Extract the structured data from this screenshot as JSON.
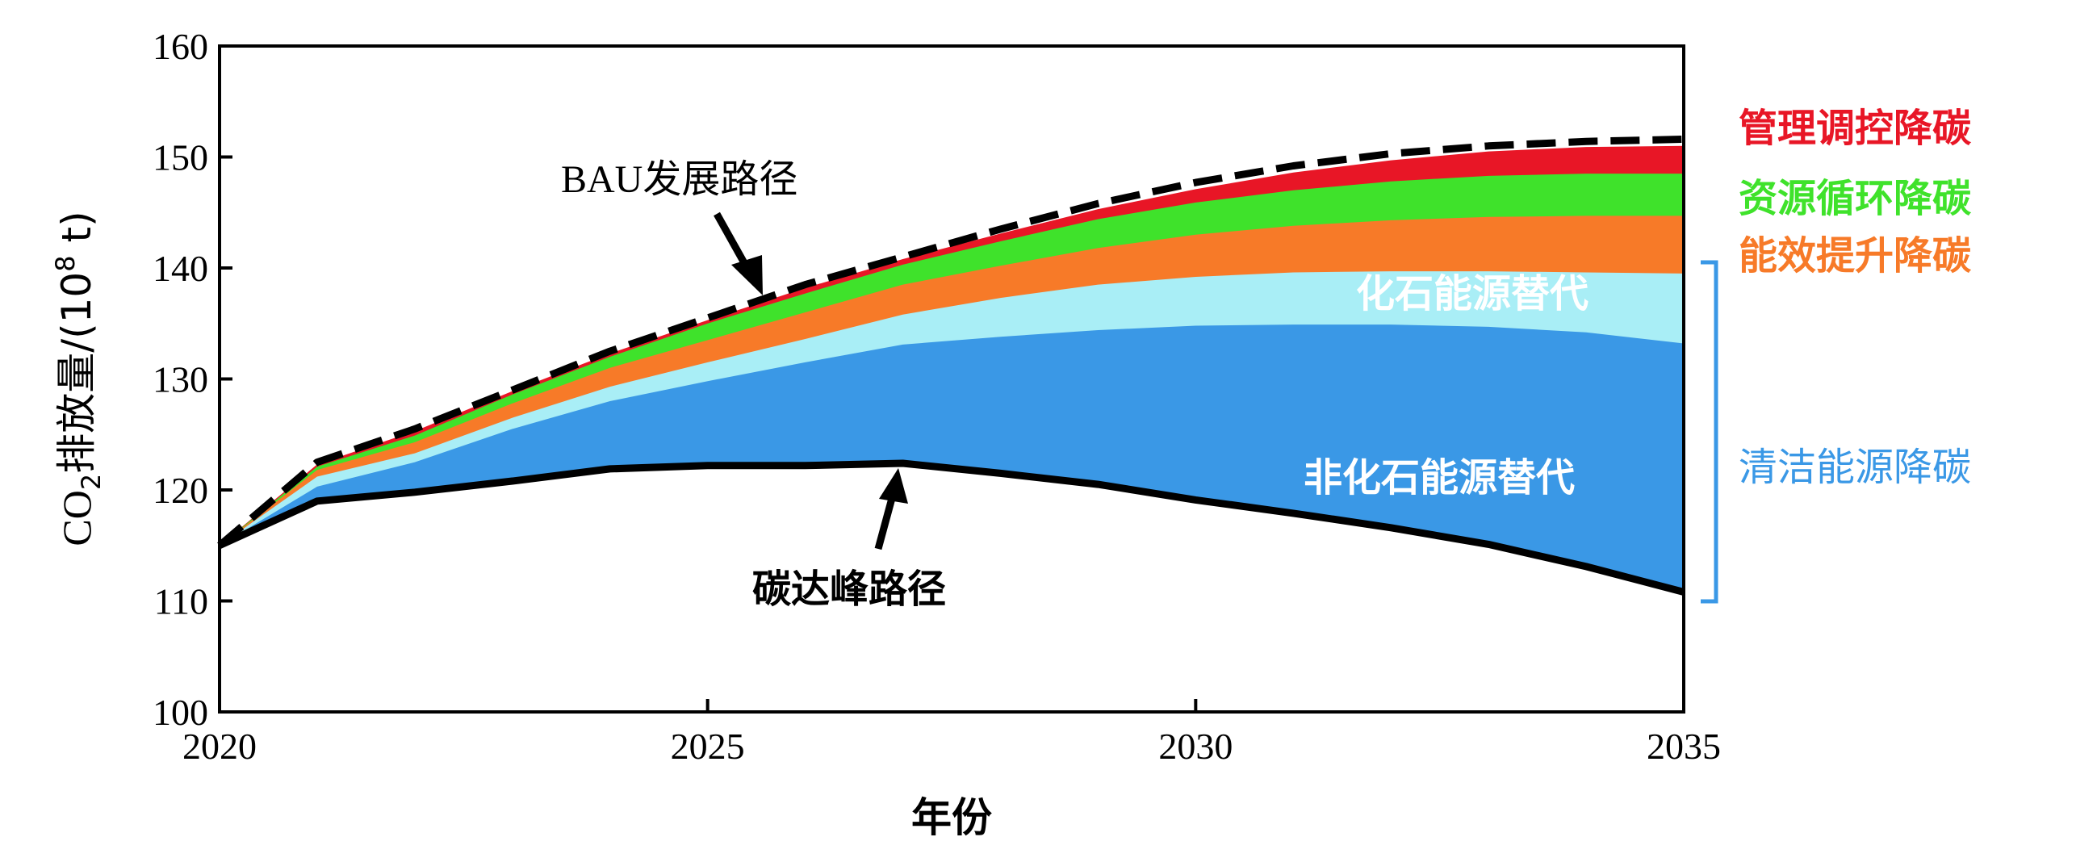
{
  "chart_data": {
    "type": "area",
    "xlabel": "年份",
    "ylabel_prefix": "CO",
    "ylabel_sub": "2",
    "ylabel_mid": "排放量/(10",
    "ylabel_sup": "8",
    "ylabel_suffix": " t)",
    "xlim": [
      2020,
      2035
    ],
    "ylim": [
      100,
      160
    ],
    "x_ticks": [
      2020,
      2025,
      2030,
      2035
    ],
    "y_ticks": [
      100,
      110,
      120,
      130,
      140,
      150,
      160
    ],
    "x": [
      2020,
      2021,
      2022,
      2023,
      2024,
      2025,
      2026,
      2027,
      2028,
      2029,
      2030,
      2031,
      2032,
      2033,
      2034,
      2035
    ],
    "lines": {
      "bau": [
        115,
        122.5,
        125.5,
        129,
        132.5,
        135.5,
        138.5,
        141,
        143.5,
        145.8,
        147.7,
        149.2,
        150.3,
        151,
        151.4,
        151.6
      ],
      "peak": [
        115,
        119,
        119.8,
        120.8,
        121.9,
        122.2,
        122.2,
        122.4,
        121.5,
        120.5,
        119.1,
        117.9,
        116.6,
        115.1,
        113.1,
        110.8
      ]
    },
    "bands": [
      {
        "name": "非化石能源替代",
        "color": "#3a98e6",
        "top": [
          115,
          120.3,
          122.5,
          125.5,
          128,
          129.8,
          131.5,
          133.1,
          133.8,
          134.4,
          134.8,
          134.9,
          134.9,
          134.7,
          134.2,
          133.2
        ]
      },
      {
        "name": "化石能源替代",
        "color": "#a9eef6",
        "top": [
          115,
          121.2,
          123.3,
          126.5,
          129.3,
          131.5,
          133.6,
          135.8,
          137.3,
          138.5,
          139.2,
          139.6,
          139.7,
          139.7,
          139.6,
          139.5
        ]
      },
      {
        "name": "能效提升降碳",
        "color": "#f77a28",
        "top": [
          115,
          121.8,
          124.3,
          127.8,
          131,
          133.5,
          136,
          138.5,
          140.2,
          141.8,
          143,
          143.8,
          144.3,
          144.6,
          144.7,
          144.7
        ]
      },
      {
        "name": "资源循环降碳",
        "color": "#3fe22b",
        "top": [
          115,
          122.1,
          124.9,
          128.6,
          132,
          135,
          137.7,
          140.3,
          142.4,
          144.4,
          145.9,
          147,
          147.8,
          148.3,
          148.5,
          148.5
        ]
      },
      {
        "name": "管理调控降碳",
        "color": "#e81626",
        "top": [
          115,
          122.3,
          125.3,
          128.9,
          132.3,
          135.3,
          138.2,
          140.8,
          143.1,
          145.3,
          147.1,
          148.6,
          149.7,
          150.5,
          150.9,
          151
        ]
      }
    ],
    "annotations": {
      "bau_label": "BAU发展路径",
      "peak_label": "碳达峰路径",
      "clean_label": "清洁能源降碳",
      "nonfossil_label": "非化石能源替代",
      "fossil_label": "化石能源替代",
      "energy_eff_label": "能效提升降碳",
      "resource_label": "资源循环降碳",
      "manage_label": "管理调控降碳"
    },
    "colors": {
      "clean_bracket": "#3a98e6",
      "manage_text": "#e81626",
      "resource_text": "#3fe22b",
      "energy_eff_text": "#f77a28",
      "clean_text": "#3a98e6",
      "fossil_text": "#ffffff",
      "nonfossil_text": "#ffffff",
      "bau_text": "#000000",
      "peak_text": "#000000"
    },
    "grid": false
  }
}
